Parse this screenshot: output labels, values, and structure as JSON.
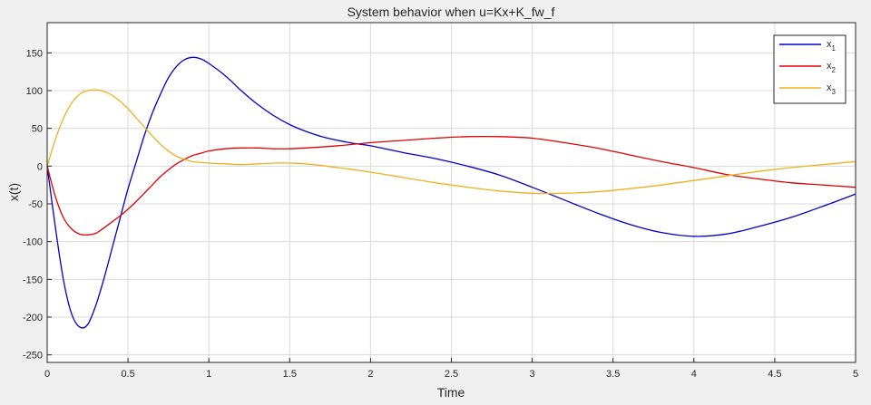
{
  "chart_data": {
    "type": "line",
    "title": "System behavior when u=Kx+K_fw_f",
    "xlabel": "Time",
    "ylabel": "x(t)",
    "xlim": [
      0,
      5
    ],
    "ylim": [
      -260,
      190
    ],
    "xticks": [
      "0",
      "0.5",
      "1",
      "1.5",
      "2",
      "2.5",
      "3",
      "3.5",
      "4",
      "4.5",
      "5"
    ],
    "yticks": [
      "150",
      "100",
      "50",
      "0",
      "-50",
      "-100",
      "-150",
      "-200",
      "-250"
    ],
    "grid": true,
    "legend_position": "top-right",
    "series": [
      {
        "name": "x",
        "subscript": "1",
        "color": "#0000cc",
        "points": [
          [
            0,
            0
          ],
          [
            0.05,
            -80
          ],
          [
            0.1,
            -150
          ],
          [
            0.15,
            -195
          ],
          [
            0.2,
            -213
          ],
          [
            0.25,
            -210
          ],
          [
            0.3,
            -185
          ],
          [
            0.35,
            -150
          ],
          [
            0.4,
            -110
          ],
          [
            0.45,
            -70
          ],
          [
            0.5,
            -30
          ],
          [
            0.55,
            5
          ],
          [
            0.6,
            40
          ],
          [
            0.65,
            70
          ],
          [
            0.7,
            95
          ],
          [
            0.75,
            117
          ],
          [
            0.8,
            132
          ],
          [
            0.85,
            141
          ],
          [
            0.9,
            144
          ],
          [
            0.95,
            142
          ],
          [
            1.0,
            136
          ],
          [
            1.1,
            120
          ],
          [
            1.2,
            100
          ],
          [
            1.3,
            82
          ],
          [
            1.4,
            67
          ],
          [
            1.5,
            55
          ],
          [
            1.6,
            46
          ],
          [
            1.7,
            39
          ],
          [
            1.8,
            34
          ],
          [
            1.9,
            30
          ],
          [
            2.0,
            27
          ],
          [
            2.2,
            18
          ],
          [
            2.4,
            10
          ],
          [
            2.6,
            0
          ],
          [
            2.8,
            -12
          ],
          [
            3.0,
            -28
          ],
          [
            3.2,
            -45
          ],
          [
            3.4,
            -62
          ],
          [
            3.6,
            -77
          ],
          [
            3.8,
            -88
          ],
          [
            4.0,
            -93
          ],
          [
            4.2,
            -90
          ],
          [
            4.4,
            -80
          ],
          [
            4.6,
            -68
          ],
          [
            4.8,
            -53
          ],
          [
            5.0,
            -37
          ]
        ]
      },
      {
        "name": "x",
        "subscript": "2",
        "color": "#e00000",
        "points": [
          [
            0,
            0
          ],
          [
            0.05,
            -40
          ],
          [
            0.1,
            -68
          ],
          [
            0.15,
            -83
          ],
          [
            0.2,
            -90
          ],
          [
            0.25,
            -91
          ],
          [
            0.3,
            -89
          ],
          [
            0.35,
            -82
          ],
          [
            0.4,
            -74
          ],
          [
            0.45,
            -66
          ],
          [
            0.5,
            -57
          ],
          [
            0.55,
            -47
          ],
          [
            0.6,
            -36
          ],
          [
            0.65,
            -25
          ],
          [
            0.7,
            -14
          ],
          [
            0.75,
            -5
          ],
          [
            0.8,
            3
          ],
          [
            0.85,
            9
          ],
          [
            0.9,
            14
          ],
          [
            0.95,
            17
          ],
          [
            1.0,
            20
          ],
          [
            1.1,
            23
          ],
          [
            1.2,
            24
          ],
          [
            1.3,
            24
          ],
          [
            1.4,
            23
          ],
          [
            1.5,
            23
          ],
          [
            1.6,
            24
          ],
          [
            1.8,
            27
          ],
          [
            2.0,
            31
          ],
          [
            2.2,
            34
          ],
          [
            2.4,
            37
          ],
          [
            2.6,
            39
          ],
          [
            2.8,
            39
          ],
          [
            3.0,
            37
          ],
          [
            3.2,
            31
          ],
          [
            3.4,
            24
          ],
          [
            3.6,
            15
          ],
          [
            3.8,
            6
          ],
          [
            4.0,
            -2
          ],
          [
            4.2,
            -11
          ],
          [
            4.4,
            -17
          ],
          [
            4.6,
            -22
          ],
          [
            4.8,
            -25
          ],
          [
            5.0,
            -28
          ]
        ]
      },
      {
        "name": "x",
        "subscript": "3",
        "color": "#edb120",
        "points": [
          [
            0,
            0
          ],
          [
            0.05,
            35
          ],
          [
            0.1,
            63
          ],
          [
            0.15,
            83
          ],
          [
            0.2,
            95
          ],
          [
            0.25,
            100
          ],
          [
            0.3,
            101
          ],
          [
            0.35,
            99
          ],
          [
            0.4,
            94
          ],
          [
            0.45,
            86
          ],
          [
            0.5,
            76
          ],
          [
            0.55,
            64
          ],
          [
            0.6,
            52
          ],
          [
            0.65,
            40
          ],
          [
            0.7,
            29
          ],
          [
            0.75,
            20
          ],
          [
            0.8,
            13
          ],
          [
            0.85,
            9
          ],
          [
            0.9,
            6
          ],
          [
            1.0,
            4
          ],
          [
            1.1,
            3
          ],
          [
            1.2,
            2
          ],
          [
            1.3,
            3
          ],
          [
            1.4,
            4
          ],
          [
            1.5,
            4
          ],
          [
            1.6,
            3
          ],
          [
            1.8,
            -2
          ],
          [
            2.0,
            -8
          ],
          [
            2.2,
            -15
          ],
          [
            2.4,
            -22
          ],
          [
            2.6,
            -28
          ],
          [
            2.8,
            -33
          ],
          [
            3.0,
            -36
          ],
          [
            3.2,
            -36
          ],
          [
            3.4,
            -34
          ],
          [
            3.6,
            -30
          ],
          [
            3.8,
            -25
          ],
          [
            4.0,
            -19
          ],
          [
            4.2,
            -13
          ],
          [
            4.4,
            -7
          ],
          [
            4.6,
            -2
          ],
          [
            4.8,
            2
          ],
          [
            5.0,
            6
          ]
        ]
      }
    ]
  }
}
